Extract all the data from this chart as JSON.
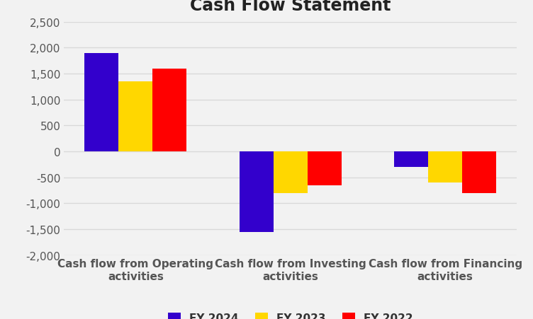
{
  "title": "Cash Flow Statement",
  "categories": [
    "Cash flow from Operating\nactivities",
    "Cash flow from Investing\nactivities",
    "Cash flow from Financing\nactivities"
  ],
  "series": {
    "FY 2024": [
      1900,
      -1550,
      -300
    ],
    "FY 2023": [
      1350,
      -800,
      -600
    ],
    "FY 2022": [
      1600,
      -650,
      -800
    ]
  },
  "colors": {
    "FY 2024": "#3300CC",
    "FY 2023": "#FFD700",
    "FY 2022": "#FF0000"
  },
  "ylim": [
    -2000,
    2500
  ],
  "yticks": [
    -2000,
    -1500,
    -1000,
    -500,
    0,
    500,
    1000,
    1500,
    2000,
    2500
  ],
  "bar_width": 0.22,
  "title_fontsize": 17,
  "tick_fontsize": 11,
  "label_fontsize": 11,
  "legend_fontsize": 11,
  "background_color": "#f2f2f2",
  "plot_bg_color": "#f2f2f2",
  "grid_color": "#d9d9d9"
}
